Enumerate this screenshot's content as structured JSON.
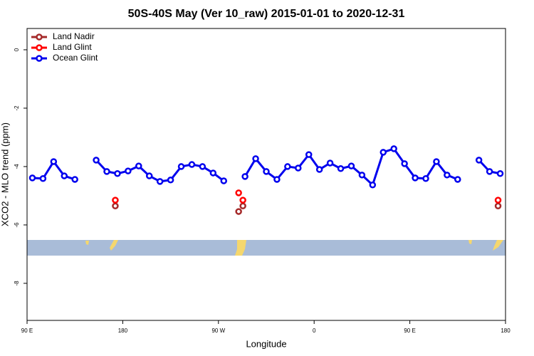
{
  "chart_data": {
    "type": "line",
    "title": "50S-40S May (Ver 10_raw)   2015-01-01 to 2020-12-31",
    "x_label": "Longitude",
    "y_label": "XCO2 - MLO trend (ppm)",
    "xlim": [
      90,
      540
    ],
    "xticks": [
      {
        "value": 90,
        "label": "90 E"
      },
      {
        "value": 180,
        "label": "180"
      },
      {
        "value": 270,
        "label": "90 W"
      },
      {
        "value": 360,
        "label": "0"
      },
      {
        "value": 450,
        "label": "90 E"
      },
      {
        "value": 540,
        "label": "180"
      }
    ],
    "ylim": [
      -9.27,
      0.73
    ],
    "yticks": [
      0,
      -2,
      -4,
      -6,
      -8
    ],
    "legend": "top-left",
    "series": [
      {
        "name": "Land Nadir",
        "color": "#a52a2a",
        "connect": false,
        "x": [
          173,
          289,
          293,
          533
        ],
        "values": [
          -5.35,
          -5.54,
          -5.35,
          -5.35
        ]
      },
      {
        "name": "Land Glint",
        "color": "#ff0000",
        "connect": false,
        "x": [
          173,
          289,
          293,
          533
        ],
        "values": [
          -5.15,
          -4.9,
          -5.15,
          -5.15
        ]
      },
      {
        "name": "Ocean Glint",
        "color": "#0000ee",
        "connect": true,
        "x": [
          95,
          105,
          115,
          125,
          135,
          145,
          155,
          165,
          175,
          185,
          195,
          205,
          215,
          225,
          235,
          245,
          255,
          265,
          275,
          285,
          295,
          305,
          315,
          325,
          335,
          345,
          355,
          365,
          375,
          385,
          395,
          405,
          415,
          425,
          435,
          445,
          455,
          465,
          475,
          485,
          495,
          505,
          515,
          525,
          535
        ],
        "values": [
          -4.39,
          -4.41,
          -3.83,
          -4.32,
          -4.44,
          null,
          -3.78,
          -4.17,
          -4.24,
          -4.15,
          -3.98,
          -4.32,
          -4.51,
          -4.46,
          -4.0,
          -3.93,
          -4.0,
          -4.22,
          -4.49,
          null,
          -4.34,
          -3.73,
          -4.17,
          -4.44,
          -4.0,
          -4.05,
          -3.59,
          -4.1,
          -3.88,
          -4.07,
          -3.98,
          -4.29,
          -4.63,
          -3.51,
          -3.39,
          -3.9,
          -4.39,
          -4.41,
          -3.83,
          -4.29,
          -4.44,
          null,
          -3.78,
          -4.17,
          -4.24
        ]
      }
    ]
  }
}
